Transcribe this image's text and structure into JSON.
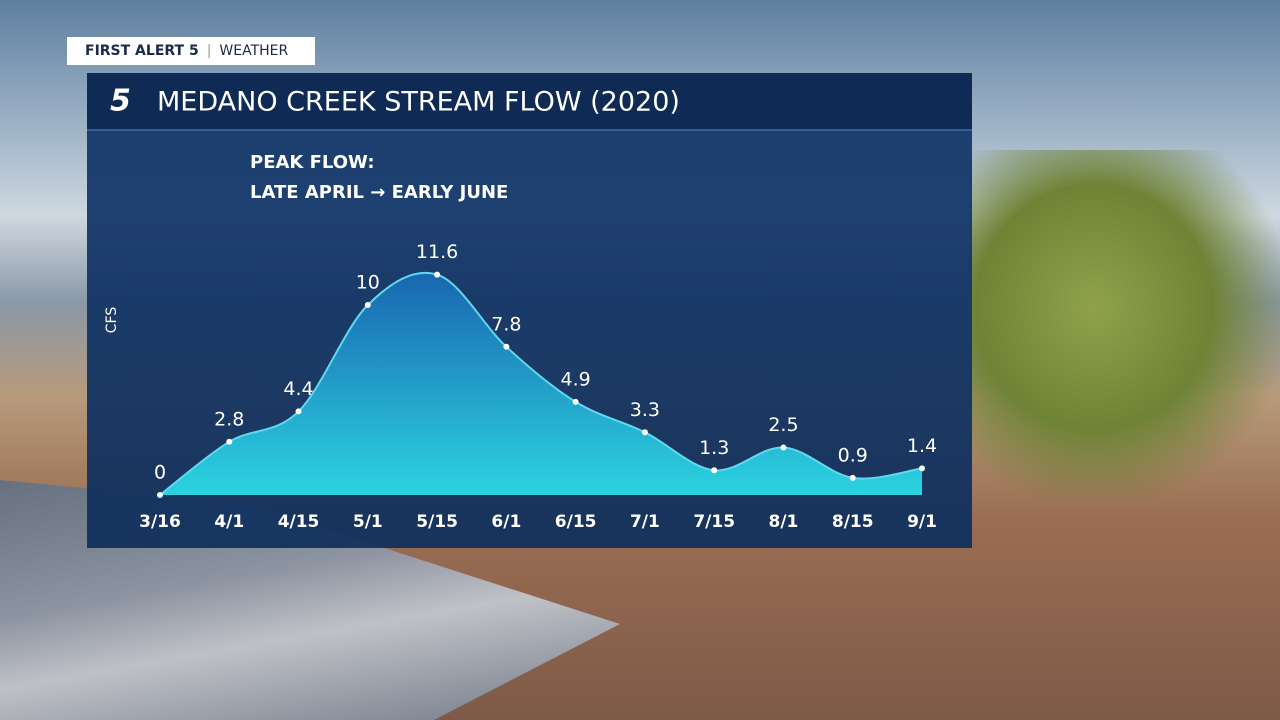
{
  "brand": {
    "name": "FIRST ALERT 5",
    "section": "WEATHER"
  },
  "chart_data": {
    "type": "area",
    "logo": "5",
    "title": "MEDANO CREEK STREAM FLOW (2020)",
    "annotations": [
      "PEAK FLOW:",
      "LATE APRIL → EARLY JUNE"
    ],
    "y_label": "CFS",
    "categories": [
      "3/16",
      "4/1",
      "4/15",
      "5/1",
      "5/15",
      "6/1",
      "6/15",
      "7/1",
      "7/15",
      "8/1",
      "8/15",
      "9/1"
    ],
    "values": [
      0,
      2.8,
      4.4,
      10,
      11.6,
      7.8,
      4.9,
      3.3,
      1.3,
      2.5,
      0.9,
      1.4
    ],
    "color": "#2bd3e0",
    "line_color": "#5fd8f0",
    "ylim": [
      0,
      12
    ]
  }
}
